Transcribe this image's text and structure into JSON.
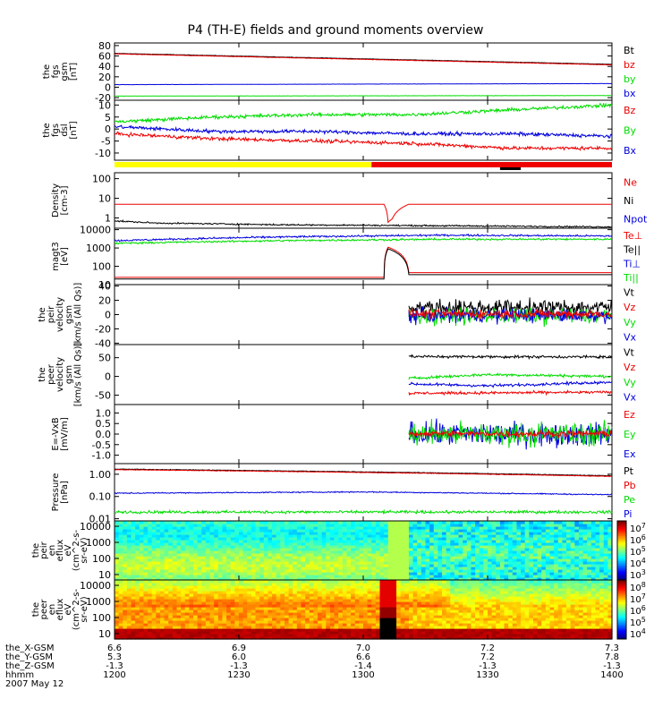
{
  "title": "P4 (TH-E) fields and ground moments overview",
  "colors": {
    "black": "#000000",
    "red": "#ee0000",
    "green": "#00dd00",
    "blue": "#0000dd",
    "yellow": "#ffff00"
  },
  "chart_data": {
    "type": "line",
    "x_ticks": [
      "1200",
      "1230",
      "1300",
      "1330",
      "1400"
    ],
    "ephemeris": [
      {
        "label": "the_X-GSM",
        "values": [
          "6.6",
          "6.9",
          "7.0",
          "7.2",
          "7.3"
        ]
      },
      {
        "label": "the_Y-GSM",
        "values": [
          "5.3",
          "6.0",
          "6.6",
          "7.2",
          "7.8"
        ]
      },
      {
        "label": "the_Z-GSM",
        "values": [
          "-1.3",
          "-1.3",
          "-1.4",
          "-1.3",
          "-1.3"
        ]
      },
      {
        "label": "hhmm",
        "values": [
          "1200",
          "1230",
          "1300",
          "1330",
          "1400"
        ]
      }
    ],
    "date": "2007 May 12",
    "panels": [
      {
        "id": "fgs_gsm",
        "ylabel": [
          "the",
          "fgs",
          "gsm",
          "[nT]"
        ],
        "ylim": [
          -25,
          85
        ],
        "yticks": [
          "80",
          "60",
          "40",
          "20",
          "0",
          "-20"
        ],
        "legend": [
          {
            "text": "Bt",
            "color": "black"
          },
          {
            "text": "bz",
            "color": "red"
          },
          {
            "text": "by",
            "color": "green"
          },
          {
            "text": "bx",
            "color": "blue"
          }
        ],
        "series": [
          {
            "name": "Bt",
            "color": "black",
            "points": [
              [
                0,
                65
              ],
              [
                60,
                44
              ]
            ],
            "noise": 0.3
          },
          {
            "name": "bz",
            "color": "red",
            "points": [
              [
                0,
                64
              ],
              [
                60,
                43
              ]
            ],
            "noise": 0.3
          },
          {
            "name": "by",
            "color": "green",
            "points": [
              [
                0,
                -17
              ],
              [
                60,
                -16
              ]
            ],
            "noise": 0.2
          },
          {
            "name": "bx",
            "color": "blue",
            "points": [
              [
                0,
                5
              ],
              [
                60,
                7
              ]
            ],
            "noise": 0.2
          }
        ]
      },
      {
        "id": "fgs_dsl",
        "ylabel": [
          "the",
          "fgs",
          "dsl",
          "[nT]"
        ],
        "ylim": [
          -13,
          12
        ],
        "yticks": [
          "10",
          "5",
          "0",
          "-5",
          "-10"
        ],
        "legend": [
          {
            "text": "Bz",
            "color": "red"
          },
          {
            "text": "By",
            "color": "green"
          },
          {
            "text": "Bx",
            "color": "blue"
          }
        ],
        "series": [
          {
            "name": "By",
            "color": "green",
            "points": [
              [
                0,
                3
              ],
              [
                12,
                5
              ],
              [
                24,
                6
              ],
              [
                36,
                6
              ],
              [
                48,
                8
              ],
              [
                60,
                10
              ]
            ],
            "noise": 0.6
          },
          {
            "name": "Bx",
            "color": "blue",
            "points": [
              [
                0,
                1
              ],
              [
                12,
                -1
              ],
              [
                24,
                -1
              ],
              [
                36,
                -2
              ],
              [
                48,
                -2
              ],
              [
                60,
                -3
              ]
            ],
            "noise": 0.6
          },
          {
            "name": "Bz",
            "color": "red",
            "points": [
              [
                0,
                -2
              ],
              [
                12,
                -4
              ],
              [
                24,
                -5
              ],
              [
                36,
                -6
              ],
              [
                48,
                -8
              ],
              [
                60,
                -8
              ]
            ],
            "noise": 0.6
          }
        ]
      },
      {
        "id": "density",
        "ylabel": [
          "Density",
          "[cm-3]"
        ],
        "ylim_log": [
          0.3,
          200
        ],
        "yticks": [
          "100",
          "10",
          "1"
        ],
        "yticks_vals": [
          100,
          10,
          1
        ],
        "legend": [
          {
            "text": "Ne",
            "color": "red"
          },
          {
            "text": "Ni",
            "color": "black"
          },
          {
            "text": "Npot",
            "color": "blue"
          }
        ],
        "series": [
          {
            "name": "Ne",
            "color": "red",
            "points": [
              [
                0,
                5
              ],
              [
                32.5,
                5
              ],
              [
                33,
                0.6
              ],
              [
                33.5,
                0.9
              ],
              [
                35.5,
                5
              ],
              [
                60,
                5
              ]
            ],
            "noise": 0
          },
          {
            "name": "Ni",
            "color": "black",
            "points": [
              [
                0,
                0.7
              ],
              [
                5,
                0.55
              ],
              [
                20,
                0.45
              ],
              [
                40,
                0.4
              ],
              [
                60,
                0.35
              ]
            ],
            "noise": 0.03
          }
        ]
      },
      {
        "id": "temperature",
        "ylabel": [
          "magt3",
          "[eV]"
        ],
        "ylim_log": [
          10,
          12000
        ],
        "yticks": [
          "10000",
          "1000",
          "100",
          "10"
        ],
        "yticks_vals": [
          10000,
          1000,
          100,
          10
        ],
        "legend": [
          {
            "text": "Te⊥",
            "color": "red"
          },
          {
            "text": "Te||",
            "color": "black"
          },
          {
            "text": "Ti⊥",
            "color": "blue"
          },
          {
            "text": "Ti||",
            "color": "green"
          }
        ],
        "series": [
          {
            "name": "Ti⊥",
            "color": "blue",
            "points": [
              [
                0,
                2500
              ],
              [
                20,
                4000
              ],
              [
                40,
                5000
              ],
              [
                60,
                4500
              ]
            ],
            "noise": 0.04
          },
          {
            "name": "Ti||",
            "color": "green",
            "points": [
              [
                0,
                1800
              ],
              [
                20,
                2500
              ],
              [
                40,
                3000
              ],
              [
                60,
                3000
              ]
            ],
            "noise": 0.04
          },
          {
            "name": "Te⊥",
            "color": "red",
            "points": [
              [
                0,
                25
              ],
              [
                32.5,
                25
              ],
              [
                33,
                1100
              ],
              [
                35.5,
                45
              ],
              [
                60,
                45
              ]
            ],
            "noise": 0
          },
          {
            "name": "Te||",
            "color": "black",
            "points": [
              [
                0,
                20
              ],
              [
                32.5,
                20
              ],
              [
                33,
                900
              ],
              [
                35.5,
                35
              ],
              [
                60,
                35
              ]
            ],
            "noise": 0
          }
        ]
      },
      {
        "id": "peir_velocity",
        "ylabel": [
          "the",
          "peir",
          "velocity",
          "gsm",
          "[km/s (All Qs)]"
        ],
        "ylim": [
          -42,
          42
        ],
        "yticks": [
          "40",
          "20",
          "0",
          "-20",
          "-40"
        ],
        "legend": [
          {
            "text": "Vt",
            "color": "black"
          },
          {
            "text": "Vz",
            "color": "red"
          },
          {
            "text": "Vy",
            "color": "green"
          },
          {
            "text": "Vx",
            "color": "blue"
          }
        ],
        "start": 35.5,
        "series": [
          {
            "name": "Vt",
            "color": "black",
            "points": [
              [
                35.5,
                10
              ],
              [
                60,
                10
              ]
            ],
            "noise": 9
          },
          {
            "name": "Vy",
            "color": "green",
            "points": [
              [
                35.5,
                -2
              ],
              [
                60,
                -2
              ]
            ],
            "noise": 9
          },
          {
            "name": "Vx",
            "color": "blue",
            "points": [
              [
                35.5,
                -1
              ],
              [
                60,
                -1
              ]
            ],
            "noise": 8
          },
          {
            "name": "Vz",
            "color": "red",
            "points": [
              [
                35.5,
                1
              ],
              [
                60,
                1
              ]
            ],
            "noise": 5
          }
        ]
      },
      {
        "id": "peer_velocity",
        "ylabel": [
          "the",
          "peer",
          "velocity",
          "gsm",
          "[km/s (All Qs)]"
        ],
        "ylim": [
          -75,
          85
        ],
        "yticks": [
          "50",
          "0",
          "-50"
        ],
        "legend": [
          {
            "text": "Vt",
            "color": "black"
          },
          {
            "text": "Vz",
            "color": "red"
          },
          {
            "text": "Vy",
            "color": "green"
          },
          {
            "text": "Vx",
            "color": "blue"
          }
        ],
        "start": 35.5,
        "series": [
          {
            "name": "Vt",
            "color": "black",
            "points": [
              [
                35.5,
                53
              ],
              [
                60,
                52
              ]
            ],
            "noise": 3
          },
          {
            "name": "Vy",
            "color": "green",
            "points": [
              [
                35.5,
                -5
              ],
              [
                45,
                5
              ],
              [
                60,
                0
              ]
            ],
            "noise": 3
          },
          {
            "name": "Vx",
            "color": "blue",
            "points": [
              [
                35.5,
                -20
              ],
              [
                45,
                -25
              ],
              [
                60,
                -15
              ]
            ],
            "noise": 3
          },
          {
            "name": "Vz",
            "color": "red",
            "points": [
              [
                35.5,
                -45
              ],
              [
                60,
                -42
              ]
            ],
            "noise": 3
          }
        ]
      },
      {
        "id": "efield",
        "ylabel": [
          "E=-VxB",
          "[mV/m]"
        ],
        "ylim": [
          -1.4,
          1.4
        ],
        "yticks": [
          "1.0",
          "0.5",
          "0.0",
          "-0.5",
          "-1.0"
        ],
        "legend": [
          {
            "text": "Ez",
            "color": "red"
          },
          {
            "text": "Ey",
            "color": "green"
          },
          {
            "text": "Ex",
            "color": "blue"
          }
        ],
        "start": 35.5,
        "series": [
          {
            "name": "Ex",
            "color": "blue",
            "points": [
              [
                35.5,
                0
              ],
              [
                60,
                0
              ]
            ],
            "noise": 0.45
          },
          {
            "name": "Ey",
            "color": "green",
            "points": [
              [
                35.5,
                0
              ],
              [
                60,
                0
              ]
            ],
            "noise": 0.45
          },
          {
            "name": "Ez",
            "color": "red",
            "points": [
              [
                35.5,
                0.02
              ],
              [
                60,
                0.02
              ]
            ],
            "noise": 0.12
          }
        ]
      },
      {
        "id": "pressure",
        "ylabel": [
          "Pressure",
          "[nPa]"
        ],
        "ylim_log": [
          0.008,
          3
        ],
        "yticks": [
          "1.00",
          "0.10",
          "0.01"
        ],
        "yticks_vals": [
          1,
          0.1,
          0.01
        ],
        "legend": [
          {
            "text": "Pt",
            "color": "black"
          },
          {
            "text": "Pb",
            "color": "red"
          },
          {
            "text": "Pe",
            "color": "green"
          },
          {
            "text": "Pi",
            "color": "blue"
          }
        ],
        "series": [
          {
            "name": "Pt",
            "color": "black",
            "points": [
              [
                0,
                1.7
              ],
              [
                60,
                0.85
              ]
            ],
            "noise": 0.01
          },
          {
            "name": "Pb",
            "color": "red",
            "points": [
              [
                0,
                1.6
              ],
              [
                60,
                0.8
              ]
            ],
            "noise": 0.01
          },
          {
            "name": "Pi",
            "color": "blue",
            "points": [
              [
                0,
                0.14
              ],
              [
                30,
                0.16
              ],
              [
                60,
                0.12
              ]
            ],
            "noise": 0.02
          },
          {
            "name": "Pe",
            "color": "green",
            "points": [
              [
                0,
                0.02
              ],
              [
                60,
                0.02
              ]
            ],
            "noise": 0.05
          }
        ]
      }
    ],
    "spectrograms": [
      {
        "id": "peir_en_eflux",
        "ylabel": [
          "the",
          "peir",
          "en",
          "eflux",
          "eV",
          "(cm^2-s-",
          "sr-eV)"
        ],
        "yticks": [
          "10000",
          "1000",
          "100",
          "10"
        ],
        "colorbar_ticks": [
          "10^7",
          "10^6",
          "10^5",
          "10^4",
          "10^3"
        ]
      },
      {
        "id": "peer_en_eflux",
        "ylabel": [
          "the",
          "peer",
          "en",
          "eflux",
          "eV",
          "(cm^2-s-",
          "sr-eV)"
        ],
        "yticks": [
          "10000",
          "1000",
          "100",
          "10"
        ],
        "colorbar_ticks": [
          "10^8",
          "10^7",
          "10^6",
          "10^5",
          "10^4"
        ]
      }
    ]
  }
}
